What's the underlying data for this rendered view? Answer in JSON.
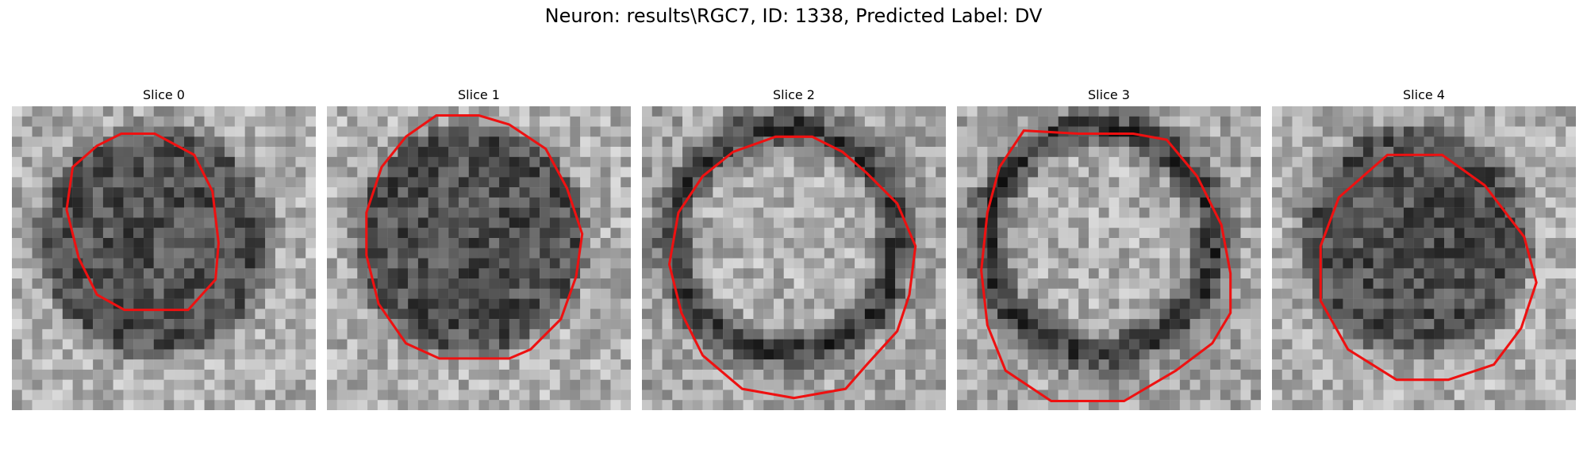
{
  "figure": {
    "title": "Neuron: results\\RGC7, ID: 1338, Predicted Label: DV"
  },
  "colors": {
    "contour": "#ee1111",
    "background": "#ffffff"
  },
  "slices": [
    {
      "title": "Slice 0",
      "seed": 11,
      "pattern": "dark-blob",
      "contour": [
        [
          0.36,
          0.09
        ],
        [
          0.47,
          0.09
        ],
        [
          0.6,
          0.16
        ],
        [
          0.66,
          0.28
        ],
        [
          0.68,
          0.45
        ],
        [
          0.67,
          0.57
        ],
        [
          0.58,
          0.67
        ],
        [
          0.37,
          0.67
        ],
        [
          0.28,
          0.62
        ],
        [
          0.22,
          0.5
        ],
        [
          0.18,
          0.34
        ],
        [
          0.2,
          0.2
        ],
        [
          0.28,
          0.13
        ]
      ]
    },
    {
      "title": "Slice 1",
      "seed": 23,
      "pattern": "dark-blob",
      "contour": [
        [
          0.36,
          0.03
        ],
        [
          0.5,
          0.03
        ],
        [
          0.6,
          0.06
        ],
        [
          0.72,
          0.14
        ],
        [
          0.79,
          0.27
        ],
        [
          0.84,
          0.42
        ],
        [
          0.82,
          0.56
        ],
        [
          0.77,
          0.7
        ],
        [
          0.67,
          0.8
        ],
        [
          0.6,
          0.83
        ],
        [
          0.37,
          0.83
        ],
        [
          0.26,
          0.78
        ],
        [
          0.17,
          0.65
        ],
        [
          0.13,
          0.49
        ],
        [
          0.13,
          0.35
        ],
        [
          0.18,
          0.2
        ],
        [
          0.26,
          0.1
        ]
      ]
    },
    {
      "title": "Slice 2",
      "seed": 37,
      "pattern": "ring",
      "contour": [
        [
          0.44,
          0.1
        ],
        [
          0.56,
          0.1
        ],
        [
          0.66,
          0.15
        ],
        [
          0.74,
          0.22
        ],
        [
          0.84,
          0.32
        ],
        [
          0.9,
          0.46
        ],
        [
          0.88,
          0.62
        ],
        [
          0.84,
          0.74
        ],
        [
          0.74,
          0.85
        ],
        [
          0.67,
          0.93
        ],
        [
          0.5,
          0.96
        ],
        [
          0.33,
          0.93
        ],
        [
          0.2,
          0.82
        ],
        [
          0.13,
          0.68
        ],
        [
          0.09,
          0.52
        ],
        [
          0.12,
          0.35
        ],
        [
          0.2,
          0.23
        ],
        [
          0.3,
          0.15
        ]
      ]
    },
    {
      "title": "Slice 3",
      "seed": 51,
      "pattern": "ring",
      "contour": [
        [
          0.22,
          0.08
        ],
        [
          0.4,
          0.09
        ],
        [
          0.58,
          0.09
        ],
        [
          0.69,
          0.11
        ],
        [
          0.79,
          0.23
        ],
        [
          0.87,
          0.39
        ],
        [
          0.9,
          0.55
        ],
        [
          0.9,
          0.68
        ],
        [
          0.84,
          0.78
        ],
        [
          0.72,
          0.87
        ],
        [
          0.55,
          0.97
        ],
        [
          0.31,
          0.97
        ],
        [
          0.16,
          0.87
        ],
        [
          0.1,
          0.72
        ],
        [
          0.08,
          0.54
        ],
        [
          0.1,
          0.35
        ],
        [
          0.14,
          0.2
        ]
      ]
    },
    {
      "title": "Slice 4",
      "seed": 67,
      "pattern": "dark-blob",
      "contour": [
        [
          0.38,
          0.16
        ],
        [
          0.56,
          0.16
        ],
        [
          0.7,
          0.26
        ],
        [
          0.83,
          0.43
        ],
        [
          0.87,
          0.58
        ],
        [
          0.82,
          0.73
        ],
        [
          0.73,
          0.85
        ],
        [
          0.58,
          0.9
        ],
        [
          0.41,
          0.9
        ],
        [
          0.25,
          0.8
        ],
        [
          0.16,
          0.64
        ],
        [
          0.16,
          0.46
        ],
        [
          0.22,
          0.3
        ]
      ]
    }
  ]
}
